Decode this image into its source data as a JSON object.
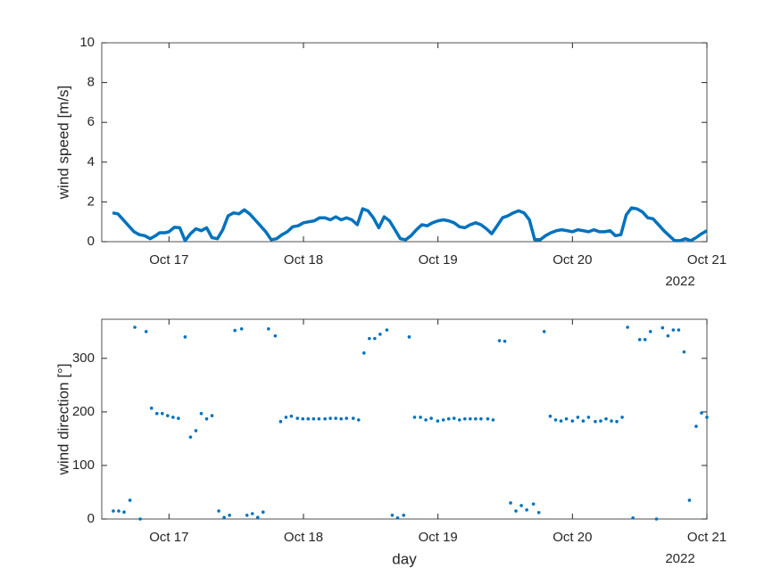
{
  "chart_data": [
    {
      "type": "line",
      "ylabel": "wind speed [m/s]",
      "date_label": "2022",
      "color": "#0072bd",
      "xlim": [
        16.5,
        21
      ],
      "ylim": [
        0,
        10
      ],
      "yticks": [
        0,
        2,
        4,
        6,
        8,
        10
      ],
      "xticks": [
        {
          "value": 17,
          "label": "Oct 17"
        },
        {
          "value": 18,
          "label": "Oct 18"
        },
        {
          "value": 19,
          "label": "Oct 19"
        },
        {
          "value": 20,
          "label": "Oct 20"
        },
        {
          "value": 21,
          "label": "Oct 21"
        }
      ],
      "x": [
        16.58,
        16.62,
        16.66,
        16.7,
        16.74,
        16.78,
        16.82,
        16.86,
        16.9,
        16.93,
        16.97,
        17.0,
        17.04,
        17.08,
        17.12,
        17.16,
        17.2,
        17.24,
        17.28,
        17.32,
        17.36,
        17.4,
        17.44,
        17.48,
        17.52,
        17.56,
        17.6,
        17.64,
        17.68,
        17.72,
        17.76,
        17.8,
        17.84,
        17.88,
        17.92,
        17.96,
        18.0,
        18.04,
        18.08,
        18.12,
        18.16,
        18.2,
        18.24,
        18.28,
        18.32,
        18.36,
        18.4,
        18.44,
        18.48,
        18.52,
        18.56,
        18.6,
        18.64,
        18.68,
        18.72,
        18.76,
        18.8,
        18.84,
        18.88,
        18.92,
        18.96,
        19.0,
        19.04,
        19.08,
        19.12,
        19.16,
        19.2,
        19.24,
        19.28,
        19.32,
        19.36,
        19.4,
        19.44,
        19.48,
        19.52,
        19.56,
        19.6,
        19.64,
        19.68,
        19.72,
        19.76,
        19.8,
        19.84,
        19.88,
        19.92,
        19.96,
        20.0,
        20.04,
        20.08,
        20.12,
        20.16,
        20.2,
        20.24,
        20.28,
        20.32,
        20.36,
        20.4,
        20.44,
        20.48,
        20.52,
        20.56,
        20.6,
        20.64,
        20.68,
        20.72,
        20.76,
        20.8,
        20.84,
        20.88,
        20.92,
        20.96,
        21.0
      ],
      "values": [
        1.45,
        1.4,
        1.1,
        0.8,
        0.5,
        0.35,
        0.3,
        0.15,
        0.3,
        0.45,
        0.45,
        0.5,
        0.72,
        0.7,
        0.05,
        0.4,
        0.65,
        0.55,
        0.7,
        0.2,
        0.15,
        0.6,
        1.3,
        1.45,
        1.4,
        1.6,
        1.4,
        1.1,
        0.8,
        0.5,
        0.1,
        0.15,
        0.35,
        0.5,
        0.75,
        0.8,
        0.95,
        1.0,
        1.05,
        1.2,
        1.2,
        1.1,
        1.25,
        1.1,
        1.2,
        1.1,
        0.85,
        1.65,
        1.55,
        1.2,
        0.7,
        1.25,
        1.05,
        0.6,
        0.15,
        0.1,
        0.3,
        0.6,
        0.85,
        0.8,
        0.95,
        1.05,
        1.1,
        1.05,
        0.95,
        0.75,
        0.7,
        0.85,
        0.95,
        0.85,
        0.65,
        0.4,
        0.8,
        1.2,
        1.3,
        1.45,
        1.55,
        1.45,
        1.1,
        0.1,
        0.1,
        0.3,
        0.45,
        0.55,
        0.6,
        0.55,
        0.5,
        0.6,
        0.55,
        0.5,
        0.6,
        0.5,
        0.5,
        0.55,
        0.3,
        0.35,
        1.35,
        1.7,
        1.65,
        1.5,
        1.2,
        1.15,
        0.85,
        0.55,
        0.3,
        0.05,
        0.05,
        0.15,
        0.05,
        0.2,
        0.4,
        0.55
      ]
    },
    {
      "type": "scatter",
      "ylabel": "wind direction [°]",
      "xlabel": "day",
      "date_label": "2022",
      "color": "#0072bd",
      "xlim": [
        16.5,
        21
      ],
      "ylim": [
        0,
        373
      ],
      "yticks": [
        0,
        100,
        200,
        300
      ],
      "xticks": [
        {
          "value": 17,
          "label": "Oct 17"
        },
        {
          "value": 18,
          "label": "Oct 18"
        },
        {
          "value": 19,
          "label": "Oct 19"
        },
        {
          "value": 20,
          "label": "Oct 20"
        },
        {
          "value": 21,
          "label": "Oct 21"
        }
      ],
      "x": [
        16.586,
        16.626,
        16.666,
        16.71,
        16.746,
        16.786,
        16.83,
        16.87,
        16.91,
        16.95,
        16.99,
        17.03,
        17.07,
        17.12,
        17.16,
        17.2,
        17.24,
        17.28,
        17.32,
        17.37,
        17.41,
        17.45,
        17.49,
        17.54,
        17.58,
        17.62,
        17.66,
        17.7,
        17.74,
        17.79,
        17.83,
        17.87,
        17.91,
        17.955,
        17.995,
        18.035,
        18.075,
        18.115,
        18.16,
        18.2,
        18.24,
        18.28,
        18.32,
        18.37,
        18.41,
        18.45,
        18.49,
        18.53,
        18.57,
        18.62,
        18.66,
        18.7,
        18.745,
        18.786,
        18.826,
        18.87,
        18.91,
        18.95,
        18.998,
        19.04,
        19.08,
        19.12,
        19.16,
        19.2,
        19.24,
        19.28,
        19.32,
        19.37,
        19.41,
        19.457,
        19.497,
        19.54,
        19.58,
        19.62,
        19.66,
        19.71,
        19.75,
        19.79,
        19.835,
        19.875,
        19.915,
        19.955,
        20.0,
        20.04,
        20.08,
        20.12,
        20.17,
        20.21,
        20.25,
        20.29,
        20.33,
        20.37,
        20.41,
        20.45,
        20.5,
        20.54,
        20.58,
        20.625,
        20.67,
        20.71,
        20.75,
        20.79,
        20.83,
        20.87,
        20.92,
        20.96,
        21.0
      ],
      "values": [
        15,
        15,
        13,
        35,
        358,
        0,
        350,
        207,
        197,
        197,
        193,
        190,
        188,
        340,
        153,
        165,
        197,
        187,
        193,
        15,
        3,
        7,
        352,
        355,
        7,
        10,
        3,
        13,
        355,
        342,
        182,
        190,
        192,
        188,
        187,
        187,
        187,
        187,
        187,
        188,
        188,
        187,
        188,
        188,
        185,
        310,
        337,
        337,
        345,
        353,
        7,
        2,
        7,
        340,
        190,
        190,
        185,
        188,
        183,
        185,
        187,
        188,
        185,
        187,
        187,
        187,
        187,
        187,
        185,
        333,
        332,
        30,
        15,
        25,
        17,
        28,
        12,
        350,
        192,
        185,
        183,
        187,
        183,
        190,
        183,
        190,
        182,
        183,
        187,
        183,
        182,
        190,
        358,
        2,
        335,
        335,
        350,
        0,
        357,
        342,
        353,
        353,
        312,
        35,
        173,
        198,
        190
      ]
    }
  ]
}
